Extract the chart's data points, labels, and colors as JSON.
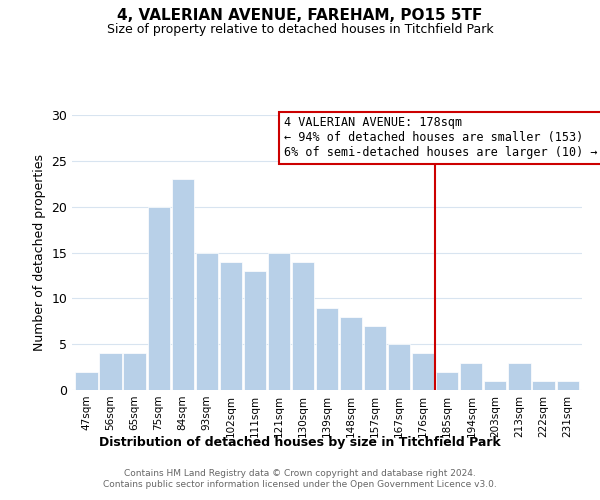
{
  "title": "4, VALERIAN AVENUE, FAREHAM, PO15 5TF",
  "subtitle": "Size of property relative to detached houses in Titchfield Park",
  "xlabel": "Distribution of detached houses by size in Titchfield Park",
  "ylabel": "Number of detached properties",
  "footer_line1": "Contains HM Land Registry data © Crown copyright and database right 2024.",
  "footer_line2": "Contains public sector information licensed under the Open Government Licence v3.0.",
  "bin_labels": [
    "47sqm",
    "56sqm",
    "65sqm",
    "75sqm",
    "84sqm",
    "93sqm",
    "102sqm",
    "111sqm",
    "121sqm",
    "130sqm",
    "139sqm",
    "148sqm",
    "157sqm",
    "167sqm",
    "176sqm",
    "185sqm",
    "194sqm",
    "203sqm",
    "213sqm",
    "222sqm",
    "231sqm"
  ],
  "bar_heights": [
    2,
    4,
    4,
    20,
    23,
    15,
    14,
    13,
    15,
    14,
    9,
    8,
    7,
    5,
    4,
    2,
    3,
    1,
    3,
    1,
    1
  ],
  "bar_color": "#b8d0e8",
  "bar_edge_color": "#ffffff",
  "grid_color": "#d8e4f0",
  "vline_x": 14.5,
  "vline_color": "#cc0000",
  "annotation_title": "4 VALERIAN AVENUE: 178sqm",
  "annotation_line2": "← 94% of detached houses are smaller (153)",
  "annotation_line3": "6% of semi-detached houses are larger (10) →",
  "annotation_box_color": "#ffffff",
  "annotation_box_edge": "#cc0000",
  "ylim": [
    0,
    30
  ],
  "yticks": [
    0,
    5,
    10,
    15,
    20,
    25,
    30
  ],
  "background_color": "#ffffff",
  "title_fontsize": 11,
  "subtitle_fontsize": 9
}
